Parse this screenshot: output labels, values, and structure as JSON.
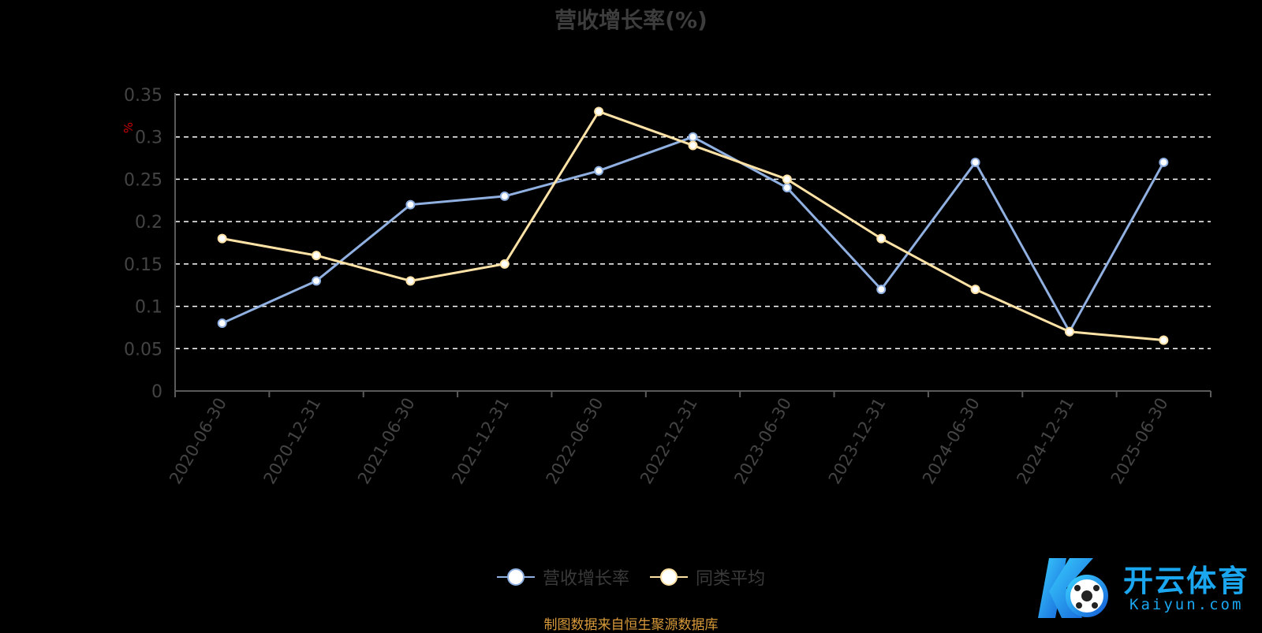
{
  "title": "营收增长率(%)",
  "source": "制图数据来自恒生聚源数据库",
  "logo": {
    "cn": "开云体育",
    "en": "Kaiyun.com"
  },
  "chart_data": {
    "type": "line",
    "title": "营收增长率(%)",
    "ylabel": "%",
    "xlabel": "",
    "ylim": [
      0,
      0.35
    ],
    "yticks": [
      "0",
      "0.05",
      "0.1",
      "0.15",
      "0.2",
      "0.25",
      "0.3",
      "0.35"
    ],
    "grid": true,
    "legend_position": "bottom",
    "categories": [
      "2020-06-30",
      "2020-12-31",
      "2021-06-30",
      "2021-12-31",
      "2022-06-30",
      "2022-12-31",
      "2023-06-30",
      "2023-12-31",
      "2024-06-30",
      "2024-12-31",
      "2025-06-30"
    ],
    "series": [
      {
        "name": "营收增长率",
        "color": "#8fb0e0",
        "values": [
          0.08,
          0.13,
          0.22,
          0.23,
          0.26,
          0.3,
          0.24,
          0.12,
          0.27,
          0.07,
          0.27
        ]
      },
      {
        "name": "同类平均",
        "color": "#ffe2a6",
        "values": [
          0.18,
          0.16,
          0.13,
          0.15,
          0.33,
          0.29,
          0.25,
          0.18,
          0.12,
          0.07,
          0.06
        ]
      }
    ]
  },
  "colors": {
    "axis": "#5a5a5a",
    "label": "#444444",
    "grid": "#ffffff",
    "unit": "#cc0000"
  }
}
